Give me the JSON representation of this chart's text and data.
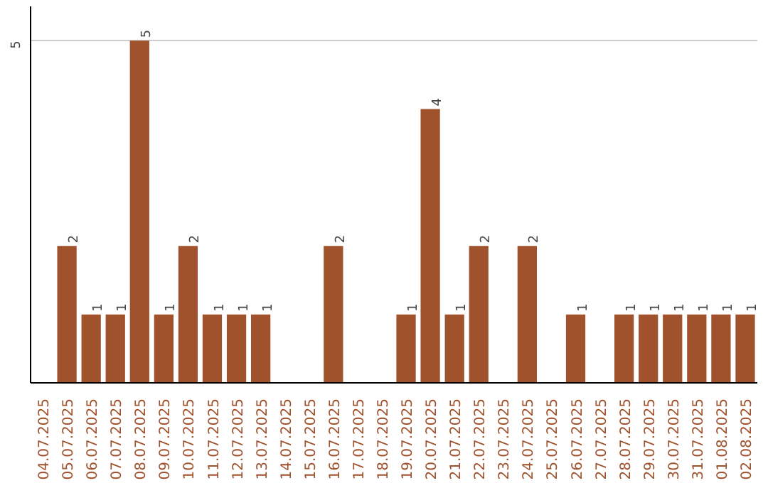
{
  "chart_data": {
    "type": "bar",
    "categories": [
      "04.07.2025",
      "05.07.2025",
      "06.07.2025",
      "07.07.2025",
      "08.07.2025",
      "09.07.2025",
      "10.07.2025",
      "11.07.2025",
      "12.07.2025",
      "13.07.2025",
      "14.07.2025",
      "15.07.2025",
      "16.07.2025",
      "17.07.2025",
      "18.07.2025",
      "19.07.2025",
      "20.07.2025",
      "21.07.2025",
      "22.07.2025",
      "23.07.2025",
      "24.07.2025",
      "25.07.2025",
      "26.07.2025",
      "27.07.2025",
      "28.07.2025",
      "29.07.2025",
      "30.07.2025",
      "31.07.2025",
      "01.08.2025",
      "02.08.2025"
    ],
    "values": [
      0,
      2,
      1,
      1,
      5,
      1,
      2,
      1,
      1,
      1,
      0,
      0,
      2,
      0,
      0,
      1,
      4,
      1,
      2,
      0,
      2,
      0,
      1,
      0,
      1,
      1,
      1,
      1,
      1,
      1
    ],
    "value_labels": [
      null,
      "2",
      "1",
      "1",
      "5",
      "1",
      "2",
      "1",
      "1",
      "1",
      null,
      null,
      "2",
      null,
      null,
      "1",
      "4",
      "1",
      "2",
      null,
      "2",
      null,
      "1",
      null,
      "1",
      "1",
      "1",
      "1",
      "1",
      "1"
    ],
    "color": "#a0522d",
    "ylim": [
      0,
      5.5
    ],
    "yticks": [
      5
    ],
    "grid": "y"
  }
}
